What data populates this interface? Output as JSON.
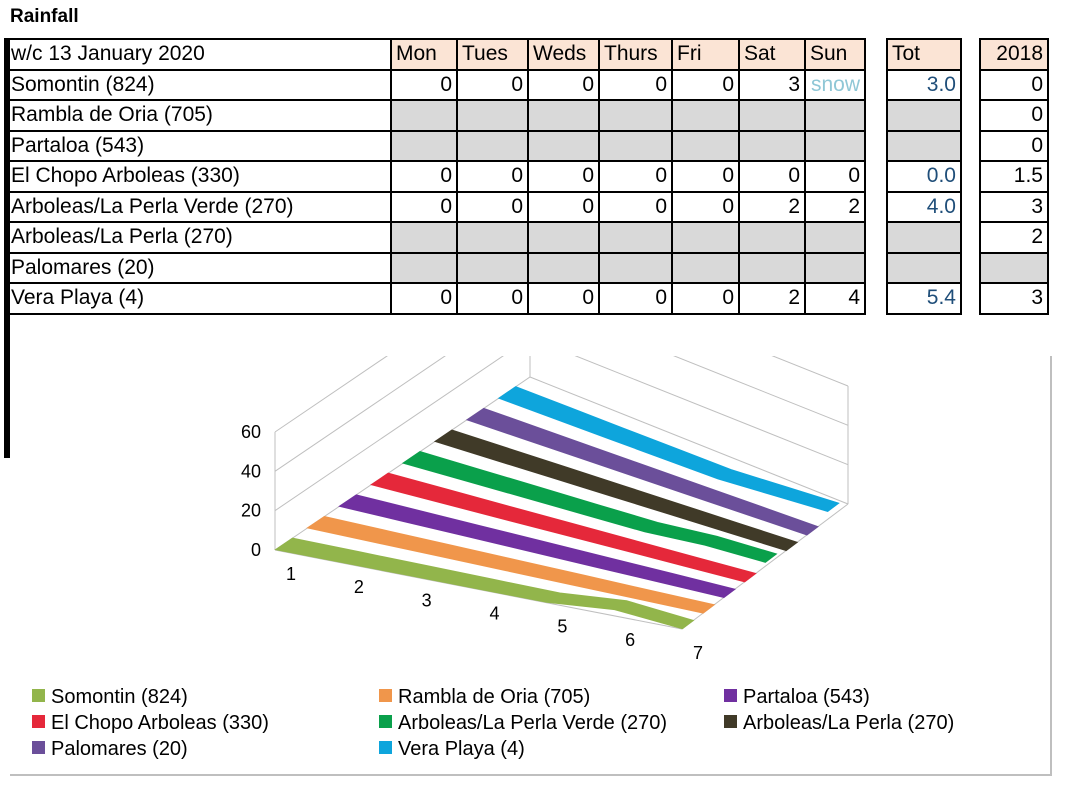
{
  "title": "Rainfall",
  "table": {
    "week_label": "w/c 13 January 2020",
    "days": [
      "Mon",
      "Tues",
      "Weds",
      "Thurs",
      "Fri",
      "Sat",
      "Sun"
    ],
    "tot_header": "Tot",
    "year_header": "2018",
    "rows": [
      {
        "name": "Somontin (824)",
        "cells": [
          "0",
          "0",
          "0",
          "0",
          "0",
          "3",
          "snow"
        ],
        "tot": "3.0",
        "y2018": "0"
      },
      {
        "name": "Rambla de Oria (705)",
        "cells": [
          "",
          "",
          "",
          "",
          "",
          "",
          ""
        ],
        "tot": "",
        "y2018": "0"
      },
      {
        "name": "Partaloa (543)",
        "cells": [
          "",
          "",
          "",
          "",
          "",
          "",
          ""
        ],
        "tot": "",
        "y2018": "0"
      },
      {
        "name": "El Chopo Arboleas (330)",
        "cells": [
          "0",
          "0",
          "0",
          "0",
          "0",
          "0",
          "0"
        ],
        "tot": "0.0",
        "y2018": "1.5"
      },
      {
        "name": "Arboleas/La Perla Verde (270)",
        "cells": [
          "0",
          "0",
          "0",
          "0",
          "0",
          "2",
          "2"
        ],
        "tot": "4.0",
        "y2018": "3"
      },
      {
        "name": "Arboleas/La Perla (270)",
        "cells": [
          "",
          "",
          "",
          "",
          "",
          "",
          ""
        ],
        "tot": "",
        "y2018": "2"
      },
      {
        "name": "Palomares (20)",
        "cells": [
          "",
          "",
          "",
          "",
          "",
          "",
          ""
        ],
        "tot": "",
        "y2018": ""
      },
      {
        "name": "Vera Playa (4)",
        "cells": [
          "0",
          "0",
          "0",
          "0",
          "0",
          "2",
          "4"
        ],
        "tot": "5.4",
        "y2018": "3"
      }
    ]
  },
  "chart_data": {
    "type": "area",
    "x": [
      1,
      2,
      3,
      4,
      5,
      6,
      7
    ],
    "xticks": [
      "1",
      "2",
      "3",
      "4",
      "5",
      "6",
      "7"
    ],
    "yticks": [
      "0",
      "20",
      "40",
      "60"
    ],
    "ylim": [
      0,
      60
    ],
    "legend_position": "bottom",
    "series": [
      {
        "name": "Somontin (824)",
        "color": "#92b54b",
        "values": [
          0,
          0,
          0,
          0,
          0,
          3,
          0
        ]
      },
      {
        "name": "Rambla de Oria (705)",
        "color": "#f0964b",
        "values": [
          0,
          0,
          0,
          0,
          0,
          0,
          0
        ]
      },
      {
        "name": "Partaloa (543)",
        "color": "#7030a0",
        "values": [
          0,
          0,
          0,
          0,
          0,
          0,
          0
        ]
      },
      {
        "name": "El Chopo Arboleas (330)",
        "color": "#e5283a",
        "values": [
          0,
          0,
          0,
          0,
          0,
          0,
          0
        ]
      },
      {
        "name": "Arboleas/La Perla Verde (270)",
        "color": "#0aa04b",
        "values": [
          0,
          0,
          0,
          0,
          0,
          2,
          2
        ]
      },
      {
        "name": "Arboleas/La Perla (270)",
        "color": "#403a28",
        "values": [
          0,
          0,
          0,
          0,
          0,
          0,
          0
        ]
      },
      {
        "name": "Palomares (20)",
        "color": "#6b4f9a",
        "values": [
          0,
          0,
          0,
          0,
          0,
          0,
          0
        ]
      },
      {
        "name": "Vera Playa (4)",
        "color": "#0ea5dc",
        "values": [
          0,
          0,
          0,
          0,
          0,
          2,
          4
        ]
      }
    ]
  }
}
